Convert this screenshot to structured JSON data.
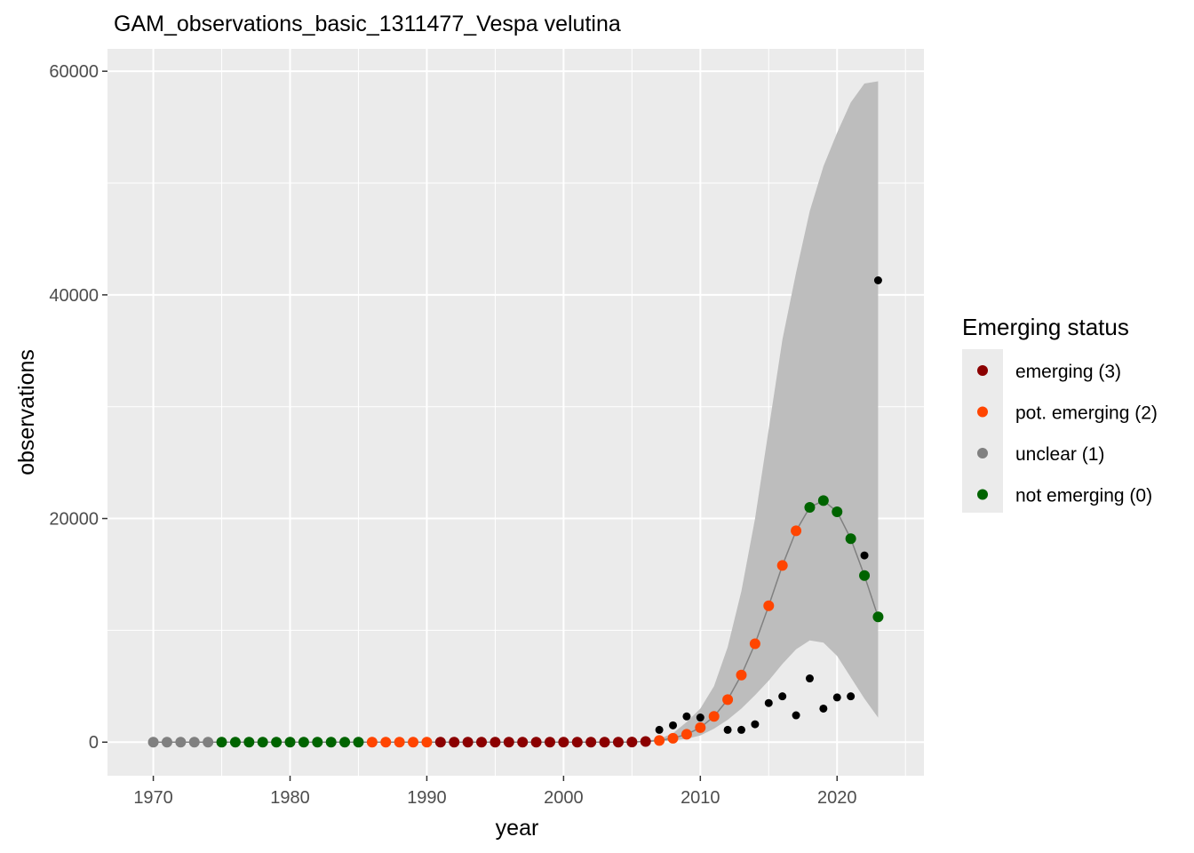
{
  "chart_data": {
    "type": "scatter",
    "title": "GAM_observations_basic_1311477_Vespa velutina",
    "xlabel": "year",
    "ylabel": "observations",
    "xlim": [
      1966.65,
      2026.35
    ],
    "ylim": [
      -3000,
      62000
    ],
    "x_ticks": [
      1970,
      1980,
      1990,
      2000,
      2010,
      2020
    ],
    "y_ticks": [
      0,
      20000,
      40000,
      60000
    ],
    "x_tick_labels": [
      "1970",
      "1980",
      "1990",
      "2000",
      "2010",
      "2020"
    ],
    "y_tick_labels": [
      "0",
      "20000",
      "40000",
      "60000"
    ],
    "grid": true,
    "panel_background": "#ebebeb",
    "legend": {
      "title": "Emerging status",
      "position": "right",
      "entries": [
        {
          "label": "emerging (3)",
          "color": "#8b0000",
          "status": 3
        },
        {
          "label": "pot. emerging (2)",
          "color": "#ff4500",
          "status": 2
        },
        {
          "label": "unclear (1)",
          "color": "#808080",
          "status": 1
        },
        {
          "label": "not emerging (0)",
          "color": "#006400",
          "status": 0
        }
      ]
    },
    "observed": {
      "name": "observations",
      "color": "#000000",
      "points": [
        [
          2007,
          1100
        ],
        [
          2008,
          1500
        ],
        [
          2009,
          2300
        ],
        [
          2010,
          2200
        ],
        [
          2011,
          2400
        ],
        [
          2012,
          1100
        ],
        [
          2013,
          1100
        ],
        [
          2014,
          1600
        ],
        [
          2015,
          3500
        ],
        [
          2016,
          4100
        ],
        [
          2017,
          2400
        ],
        [
          2018,
          5700
        ],
        [
          2019,
          3000
        ],
        [
          2020,
          4000
        ],
        [
          2021,
          4100
        ],
        [
          2022,
          16700
        ],
        [
          2023,
          41300
        ]
      ]
    },
    "fit": {
      "name": "GAM fit",
      "line_color": "#808080",
      "band_color": "#bdbdbd",
      "points": [
        [
          1970,
          0,
          0,
          0,
          1
        ],
        [
          1971,
          0,
          0,
          0,
          1
        ],
        [
          1972,
          0,
          0,
          0,
          1
        ],
        [
          1973,
          0,
          0,
          0,
          1
        ],
        [
          1974,
          0,
          0,
          0,
          1
        ],
        [
          1975,
          0,
          0,
          0,
          0
        ],
        [
          1976,
          0,
          0,
          0,
          0
        ],
        [
          1977,
          0,
          0,
          0,
          0
        ],
        [
          1978,
          0,
          0,
          0,
          0
        ],
        [
          1979,
          0,
          0,
          0,
          0
        ],
        [
          1980,
          0,
          0,
          0,
          0
        ],
        [
          1981,
          0,
          0,
          0,
          0
        ],
        [
          1982,
          0,
          0,
          0,
          0
        ],
        [
          1983,
          0,
          0,
          0,
          0
        ],
        [
          1984,
          0,
          0,
          0,
          0
        ],
        [
          1985,
          0,
          0,
          0,
          0
        ],
        [
          1986,
          0,
          0,
          0,
          2
        ],
        [
          1987,
          0,
          0,
          0,
          2
        ],
        [
          1988,
          0,
          0,
          0,
          2
        ],
        [
          1989,
          0,
          0,
          0,
          2
        ],
        [
          1990,
          0,
          0,
          0,
          2
        ],
        [
          1991,
          0,
          0,
          0,
          3
        ],
        [
          1992,
          0,
          0,
          0,
          3
        ],
        [
          1993,
          0,
          0,
          0,
          3
        ],
        [
          1994,
          0,
          0,
          0,
          3
        ],
        [
          1995,
          0,
          0,
          0,
          3
        ],
        [
          1996,
          0,
          0,
          0,
          3
        ],
        [
          1997,
          0,
          0,
          0,
          3
        ],
        [
          1998,
          0,
          0,
          0,
          3
        ],
        [
          1999,
          0,
          0,
          0,
          3
        ],
        [
          2000,
          0,
          0,
          0,
          3
        ],
        [
          2001,
          0,
          0,
          0,
          3
        ],
        [
          2002,
          0,
          0,
          0,
          3
        ],
        [
          2003,
          0,
          0,
          0,
          3
        ],
        [
          2004,
          0,
          0,
          0,
          3
        ],
        [
          2005,
          10,
          5,
          20,
          3
        ],
        [
          2006,
          60,
          30,
          120,
          3
        ],
        [
          2007,
          150,
          60,
          300,
          2
        ],
        [
          2008,
          350,
          150,
          800,
          2
        ],
        [
          2009,
          700,
          300,
          1800,
          2
        ],
        [
          2010,
          1300,
          600,
          3000,
          2
        ],
        [
          2011,
          2300,
          1200,
          5000,
          2
        ],
        [
          2012,
          3800,
          2000,
          8500,
          2
        ],
        [
          2013,
          6000,
          3000,
          13500,
          2
        ],
        [
          2014,
          8800,
          4200,
          20000,
          2
        ],
        [
          2015,
          12200,
          5500,
          28000,
          2
        ],
        [
          2016,
          15800,
          7000,
          36000,
          2
        ],
        [
          2017,
          18900,
          8300,
          42000,
          2
        ],
        [
          2018,
          21000,
          9100,
          47500,
          0
        ],
        [
          2019,
          21600,
          8900,
          51500,
          0
        ],
        [
          2020,
          20600,
          7700,
          54500,
          0
        ],
        [
          2021,
          18200,
          5800,
          57200,
          0
        ],
        [
          2022,
          14900,
          3900,
          58900,
          0
        ],
        [
          2023,
          11200,
          2200,
          59100,
          0
        ]
      ]
    }
  }
}
